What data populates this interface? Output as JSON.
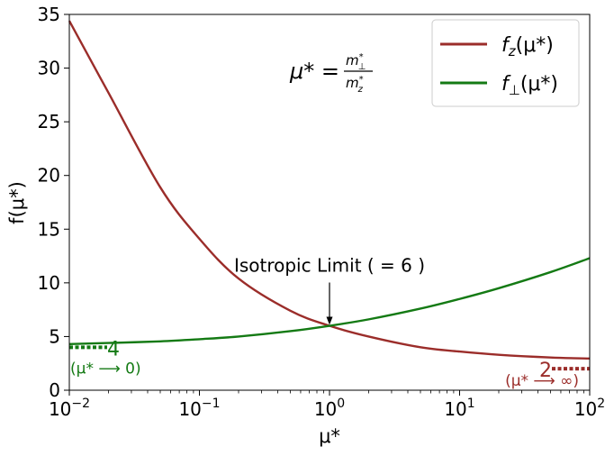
{
  "chart_data": {
    "type": "line",
    "xscale": "log",
    "xlim": [
      0.01,
      100
    ],
    "ylim": [
      0,
      35
    ],
    "x_ticks": [
      0.01,
      0.1,
      1,
      10,
      100
    ],
    "x_tick_labels": [
      {
        "base": "10",
        "exp": "−2"
      },
      {
        "base": "10",
        "exp": "−1"
      },
      {
        "base": "10",
        "exp": "0"
      },
      {
        "base": "10",
        "exp": "1"
      },
      {
        "base": "10",
        "exp": "2"
      }
    ],
    "y_ticks": [
      0,
      5,
      10,
      15,
      20,
      25,
      30,
      35
    ],
    "y_tick_labels": [
      "0",
      "5",
      "10",
      "15",
      "20",
      "25",
      "30",
      "35"
    ],
    "xlabel": "μ*",
    "ylabel": "f(μ*)",
    "grid": false,
    "legend_position": "top-right",
    "series": [
      {
        "name": "f_z(μ*)",
        "legend_base": "f",
        "legend_sub": "z",
        "legend_rest": "(μ*)",
        "color": "#9b2d2a",
        "x": [
          0.01,
          0.02,
          0.05,
          0.1,
          0.2,
          0.5,
          1,
          2,
          5,
          10,
          20,
          50,
          100
        ],
        "y": [
          34.4,
          27.7,
          18.9,
          14.1,
          10.4,
          7.4,
          6.0,
          5.0,
          4.0,
          3.6,
          3.3,
          3.05,
          2.95
        ]
      },
      {
        "name": "f_⊥(μ*)",
        "legend_base": "f",
        "legend_sub": "⊥",
        "legend_rest": "(μ*)",
        "color": "#147a14",
        "x": [
          0.01,
          0.02,
          0.05,
          0.1,
          0.2,
          0.5,
          1,
          2,
          5,
          10,
          20,
          50,
          100
        ],
        "y": [
          4.3,
          4.4,
          4.55,
          4.75,
          5.0,
          5.5,
          6.0,
          6.6,
          7.6,
          8.5,
          9.5,
          11.0,
          12.3
        ]
      }
    ],
    "limits": [
      {
        "value": 4,
        "label": "4",
        "note": "(μ* ⟶ 0)",
        "side": "left",
        "color": "#147a14"
      },
      {
        "value": 2,
        "label": "2",
        "note": "(μ* ⟶ ∞)",
        "side": "right",
        "color": "#9b2d2a"
      }
    ],
    "annotation": {
      "text": "Isotropic Limit ( = 6 )",
      "x": 1,
      "y": 6
    },
    "formula": {
      "lhs": "μ* =",
      "numerator": {
        "base": "m",
        "sup": "*",
        "sub": "⊥"
      },
      "denominator": {
        "base": "m",
        "sup": "*",
        "sub": "z"
      }
    }
  }
}
